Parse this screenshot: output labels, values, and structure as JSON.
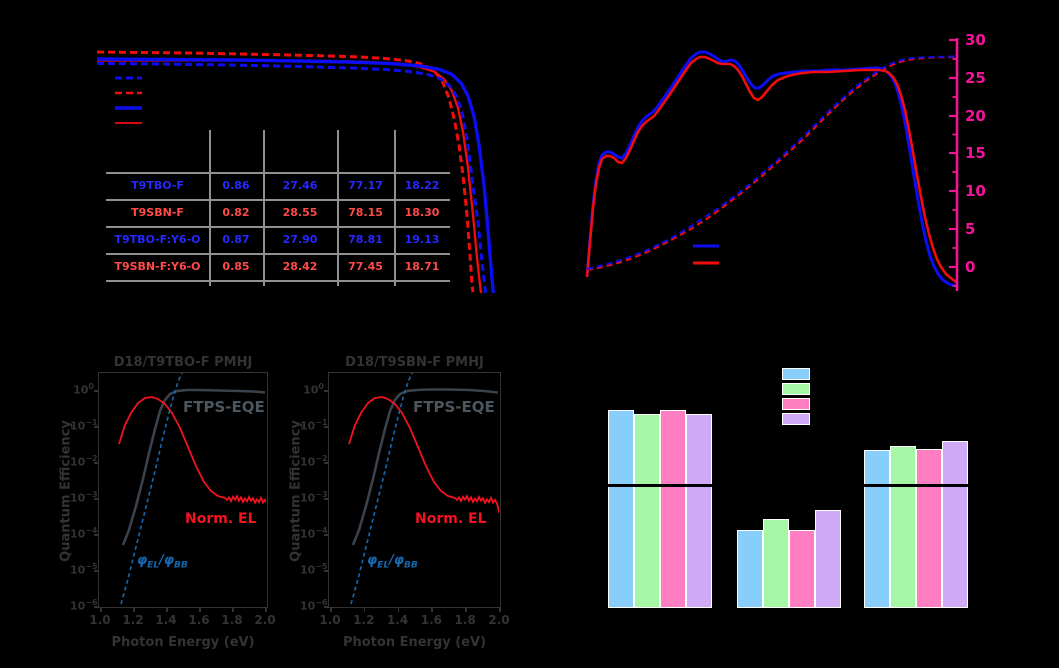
{
  "background": "#000000",
  "panel_a": {
    "colors": {
      "blue": "#0D0DF2",
      "red": "#F20D0D",
      "table_blue": "#2727FF",
      "table_red": "#FF4A4A",
      "grid": "#909090"
    },
    "legend_styles": [
      {
        "id": "blue-dashed"
      },
      {
        "id": "red-dashed"
      },
      {
        "id": "blue-solid"
      },
      {
        "id": "red-solid"
      }
    ],
    "table": {
      "rows": [
        {
          "label": "T9TBO-F",
          "color": "blue",
          "values": [
            "0.86",
            "27.46",
            "77.17",
            "18.22"
          ]
        },
        {
          "label": "T9SBN-F",
          "color": "red",
          "values": [
            "0.82",
            "28.55",
            "78.15",
            "18.30"
          ]
        },
        {
          "label": "T9TBO-F:Y6-O",
          "color": "blue",
          "values": [
            "0.87",
            "27.90",
            "78.81",
            "19.13"
          ]
        },
        {
          "label": "T9SBN-F:Y6-O",
          "color": "red",
          "values": [
            "0.85",
            "28.42",
            "77.45",
            "18.71"
          ]
        }
      ]
    }
  },
  "panel_b": {
    "right_axis": {
      "color": "#F5129B",
      "tick_labels": [
        "30",
        "25",
        "20",
        "15",
        "10",
        "5",
        "0"
      ]
    },
    "curve_blue": "#0D0DF2",
    "curve_red": "#F20D0D"
  },
  "panel_c": {
    "text_color": "#333333",
    "curve_colors": {
      "ftps": "#3A434C",
      "el": "#F5121F",
      "phi": "#1668B0"
    },
    "subplots": [
      {
        "title": "D18/T9TBO-F PMHJ"
      },
      {
        "title": "D18/T9SBN-F PMHJ"
      }
    ],
    "labels": {
      "ftps": "FTPS-EQE",
      "el": "Norm. EL",
      "phi": {
        "phi1": "φ",
        "sub1": "EL",
        "slash": "/",
        "phi2": "φ",
        "sub2": "BB"
      },
      "xlabel": "Photon Energy (eV)",
      "ylabel": "Quantum Efficiency"
    },
    "x_tick_labels": [
      "1.0",
      "1.2",
      "1.4",
      "1.6",
      "1.8",
      "2.0"
    ],
    "y_tick_exponents": [
      0,
      -1,
      -2,
      -3,
      -4,
      -5,
      -6
    ]
  },
  "panel_d": {
    "bar_colors": [
      "#87CEFA",
      "#A5F7A5",
      "#FF7EC2",
      "#CFA8F6"
    ],
    "break_line_color": "#000000"
  },
  "chart_data": [
    {
      "id": "panel_a_jv",
      "type": "line",
      "description": "J-V curves of four devices; axis titles and tick labels are not visible (rendered black on black). Inset parameter table is visible.",
      "series": [
        {
          "name": "blue-dashed",
          "color": "#0D0DF2",
          "style": "dashed"
        },
        {
          "name": "red-dashed",
          "color": "#F20D0D",
          "style": "dashed"
        },
        {
          "name": "blue-solid",
          "color": "#0D0DF2",
          "style": "solid"
        },
        {
          "name": "red-solid",
          "color": "#F20D0D",
          "style": "solid"
        }
      ],
      "table_rows": [
        {
          "device": "T9TBO-F",
          "values": [
            0.86,
            27.46,
            77.17,
            18.22
          ],
          "text_color": "blue"
        },
        {
          "device": "T9SBN-F",
          "values": [
            0.82,
            28.55,
            78.15,
            18.3
          ],
          "text_color": "red"
        },
        {
          "device": "T9TBO-F:Y6-O",
          "values": [
            0.87,
            27.9,
            78.81,
            19.13
          ],
          "text_color": "blue"
        },
        {
          "device": "T9SBN-F:Y6-O",
          "values": [
            0.85,
            28.42,
            77.45,
            18.71
          ],
          "text_color": "red"
        }
      ]
    },
    {
      "id": "panel_b_eqe",
      "type": "line",
      "description": "EQE spectra (solid blue/red) with integrated current (dashed blue/red) on magenta right axis; left/bottom axis text not visible.",
      "right_axis": {
        "range": [
          0,
          30
        ],
        "tick_step": 5,
        "color": "#F5129B"
      },
      "series": [
        {
          "name": "blue-solid-EQE",
          "color": "#0D0DF2",
          "style": "solid"
        },
        {
          "name": "red-solid-EQE",
          "color": "#F20D0D",
          "style": "solid"
        },
        {
          "name": "blue-dashed-integrated",
          "color": "#0D0DF2",
          "style": "dashed",
          "plateau_right_axis_value": 27.5
        },
        {
          "name": "red-dashed-integrated",
          "color": "#F20D0D",
          "style": "dashed",
          "plateau_right_axis_value": 27.5
        }
      ]
    },
    {
      "id": "panel_c_ftps",
      "type": "line",
      "xlabel": "Photon Energy (eV)",
      "ylabel": "Quantum Efficiency",
      "x_range": [
        1.0,
        2.0
      ],
      "y_log_range": [
        1e-06,
        1
      ],
      "subplots": [
        {
          "title": "D18/T9TBO-F PMHJ",
          "series": [
            {
              "name": "FTPS-EQE",
              "style": "solid gray",
              "plateau_value_approx": 0.8,
              "onset_eV_approx": 1.15
            },
            {
              "name": "Norm. EL",
              "style": "solid red",
              "peak_eV_approx": 1.35,
              "peak_value_approx": 0.7,
              "tail_value_approx": 0.001
            },
            {
              "name": "φEL/φBB",
              "style": "dashed blue",
              "rises_from": [
                1.12,
                1e-06
              ],
              "exits_top_near_eV": 1.5
            }
          ]
        },
        {
          "title": "D18/T9SBN-F PMHJ",
          "series": [
            {
              "name": "FTPS-EQE",
              "style": "solid gray",
              "plateau_value_approx": 0.8,
              "onset_eV_approx": 1.15
            },
            {
              "name": "Norm. EL",
              "style": "solid red",
              "peak_eV_approx": 1.33,
              "peak_value_approx": 0.7,
              "tail_value_approx": 0.0008
            },
            {
              "name": "φEL/φBB",
              "style": "dashed blue",
              "rises_from": [
                1.12,
                1e-06
              ],
              "exits_top_near_eV": 1.5
            }
          ]
        }
      ]
    },
    {
      "id": "panel_d_bars",
      "type": "bar",
      "description": "Three groups of four bars (blue, green, pink, purple) with a black axis-break line; axis and legend text not visible.",
      "series_colors": [
        "#87CEFA",
        "#A5F7A5",
        "#FF7EC2",
        "#CFA8F6"
      ],
      "break_line_relative_height": 1.0,
      "relative_heights_vs_break_line": [
        [
          1.62,
          1.58,
          1.62,
          1.58
        ],
        [
          0.64,
          0.73,
          0.64,
          0.8
        ],
        [
          1.29,
          1.32,
          1.3,
          1.36
        ]
      ]
    }
  ]
}
